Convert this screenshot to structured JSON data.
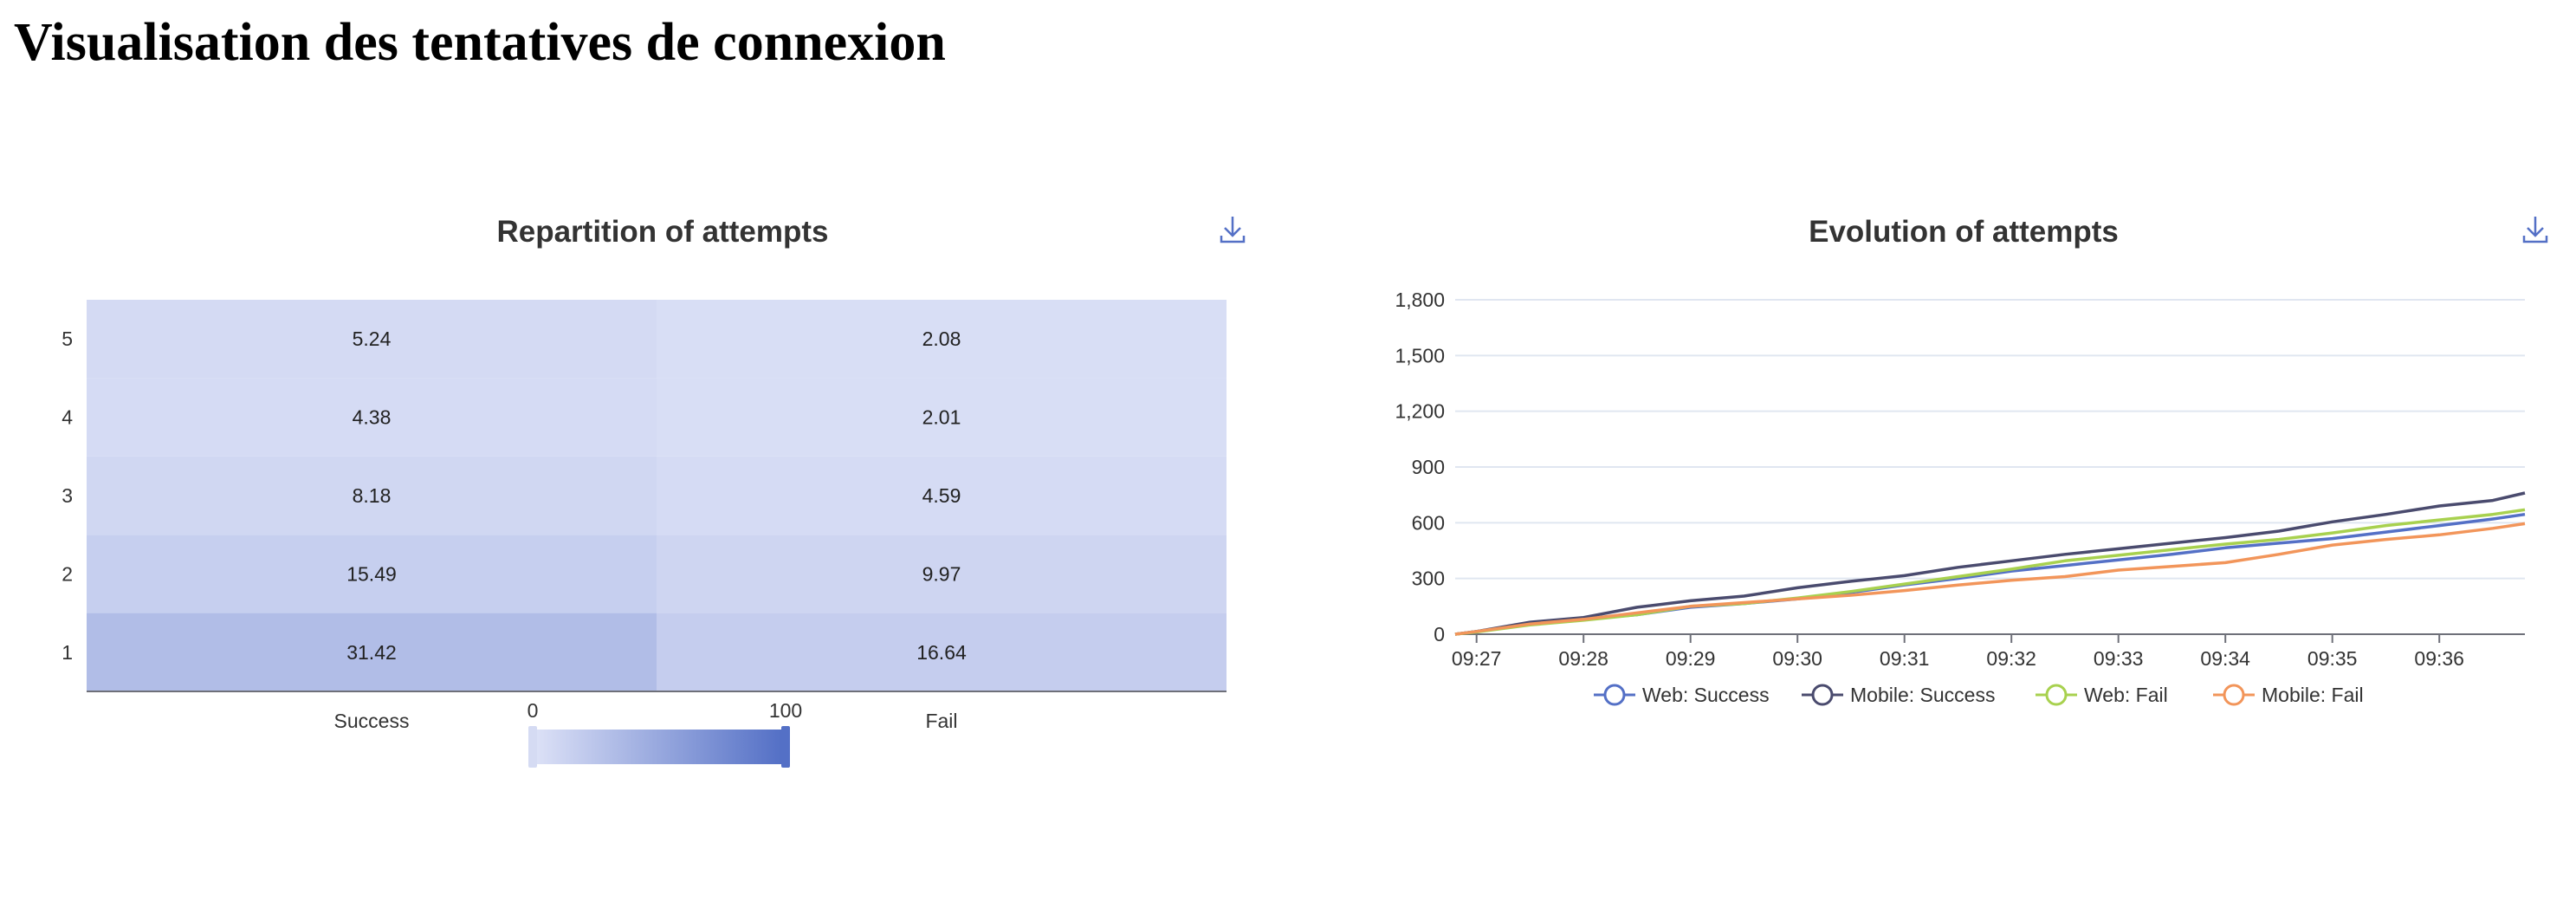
{
  "page": {
    "title": "Visualisation des tentatives de connexion"
  },
  "icons": {
    "download": "download-icon"
  },
  "colors": {
    "axis": "#6e7079",
    "grid": "#e0e6f1",
    "heat_low": "#dbe0f6",
    "heat_high": "#5470c6",
    "text": "#333333"
  },
  "chart_data": [
    {
      "type": "heatmap",
      "title": "Repartition of attempts",
      "x_categories": [
        "Success",
        "Fail"
      ],
      "y_categories": [
        "1",
        "2",
        "3",
        "4",
        "5"
      ],
      "values": [
        {
          "x": "Success",
          "y": "5",
          "value": 5.24
        },
        {
          "x": "Fail",
          "y": "5",
          "value": 2.08
        },
        {
          "x": "Success",
          "y": "4",
          "value": 4.38
        },
        {
          "x": "Fail",
          "y": "4",
          "value": 2.01
        },
        {
          "x": "Success",
          "y": "3",
          "value": 8.18
        },
        {
          "x": "Fail",
          "y": "3",
          "value": 4.59
        },
        {
          "x": "Success",
          "y": "2",
          "value": 15.49
        },
        {
          "x": "Fail",
          "y": "2",
          "value": 9.97
        },
        {
          "x": "Success",
          "y": "1",
          "value": 31.42
        },
        {
          "x": "Fail",
          "y": "1",
          "value": 16.64
        }
      ],
      "visual_map": {
        "min": 0,
        "max": 100,
        "min_label": "0",
        "max_label": "100"
      }
    },
    {
      "type": "line",
      "title": "Evolution of attempts",
      "x_labels": [
        "09:27",
        "09:28",
        "09:29",
        "09:30",
        "09:31",
        "09:32",
        "09:33",
        "09:34",
        "09:35",
        "09:36"
      ],
      "x": [
        "09:26.8",
        "09:27",
        "09:27.5",
        "09:28",
        "09:28.5",
        "09:29",
        "09:29.5",
        "09:30",
        "09:30.5",
        "09:31",
        "09:31.5",
        "09:32",
        "09:32.5",
        "09:33",
        "09:33.5",
        "09:34",
        "09:34.5",
        "09:35",
        "09:35.5",
        "09:36",
        "09:36.5",
        "09:36.8"
      ],
      "ylim": [
        0,
        1800
      ],
      "y_ticks": [
        0,
        300,
        600,
        900,
        1200,
        1500,
        1800
      ],
      "y_tick_labels": [
        "0",
        "300",
        "600",
        "900",
        "1,200",
        "1,500",
        "1,800"
      ],
      "grid": true,
      "legend_position": "bottom",
      "series": [
        {
          "name": "Web: Success",
          "color": "#5470c6",
          "values": [
            0,
            15,
            55,
            80,
            105,
            145,
            165,
            190,
            225,
            265,
            300,
            340,
            370,
            400,
            430,
            465,
            490,
            515,
            550,
            585,
            620,
            645
          ]
        },
        {
          "name": "Mobile: Success",
          "color": "#4a4b6e",
          "values": [
            0,
            15,
            65,
            90,
            145,
            180,
            205,
            250,
            285,
            315,
            360,
            395,
            430,
            460,
            490,
            520,
            555,
            605,
            645,
            690,
            720,
            760
          ]
        },
        {
          "name": "Web: Fail",
          "color": "#a8d14f",
          "values": [
            0,
            12,
            50,
            75,
            105,
            150,
            165,
            195,
            230,
            270,
            310,
            350,
            395,
            425,
            455,
            485,
            510,
            545,
            585,
            615,
            645,
            670
          ]
        },
        {
          "name": "Mobile: Fail",
          "color": "#f2955a",
          "values": [
            0,
            15,
            55,
            80,
            115,
            150,
            170,
            190,
            210,
            235,
            265,
            290,
            310,
            345,
            365,
            385,
            430,
            480,
            510,
            535,
            570,
            595
          ]
        }
      ]
    }
  ]
}
